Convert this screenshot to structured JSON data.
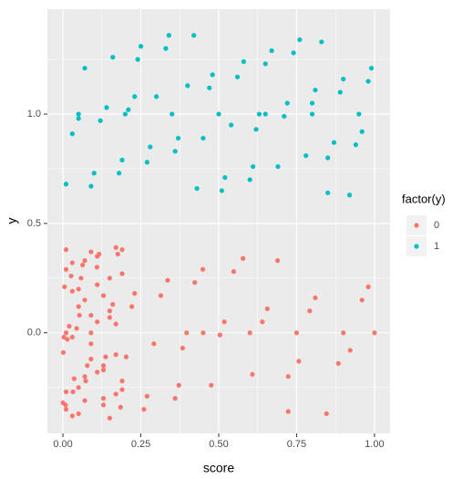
{
  "chart_data": {
    "type": "scatter",
    "x_label": "score",
    "y_label": "y",
    "legend_title": "factor(y)",
    "legend": "right",
    "grid": true,
    "xlim": [
      -0.05,
      1.05
    ],
    "ylim": [
      -0.46,
      1.48
    ],
    "xticks": [
      {
        "value": 0,
        "label": "0.00"
      },
      {
        "value": 0.25,
        "label": "0.25"
      },
      {
        "value": 0.5,
        "label": "0.50"
      },
      {
        "value": 0.75,
        "label": "0.75"
      },
      {
        "value": 1,
        "label": "1.00"
      }
    ],
    "yticks": [
      {
        "value": 0,
        "label": "0.0"
      },
      {
        "value": 0.5,
        "label": "0.5"
      },
      {
        "value": 1,
        "label": "1.0"
      }
    ],
    "minor_xticks": [
      0.125,
      0.375,
      0.625,
      0.875
    ],
    "minor_yticks": [
      -0.25,
      0.25,
      0.75,
      1.25
    ],
    "series": [
      {
        "name": "0",
        "color": "#F8766D",
        "x": [
          0.384,
          0.058,
          0.723,
          0.221,
          0.008,
          0.504,
          0.109,
          0.884,
          0.314,
          0.032,
          0.64,
          0.176,
          0.001,
          0.423,
          0.073,
          0.792,
          0.26,
          0.014,
          0.548,
          0.13,
          0.96,
          0.36,
          0.044,
          0.689,
          0.203,
          0.005,
          0.476,
          0.09,
          0.846,
          0.292,
          0.026,
          0.608,
          0.16,
          0.0,
          0.397,
          0.063,
          0.757,
          0.23,
          0.01,
          0.518,
          0.116,
          0.922,
          0.336,
          0.036,
          0.656,
          0.185,
          0.003,
          0.449,
          0.078,
          0.81,
          0.27,
          0.02,
          0.578,
          0.137,
          0.98,
          0.372,
          0.053,
          0.723,
          0.01,
          0.03,
          0.05,
          0.07,
          0.09,
          0.11,
          0.13,
          0.15,
          0.17,
          0.19,
          0.01,
          0.03,
          0.05,
          0.07,
          0.09,
          0.11,
          0.13,
          0.15,
          0.17,
          0.19,
          0.01,
          0.03,
          0.05,
          0.07,
          0.09,
          0.11,
          0.13,
          0.15,
          0.17,
          0.19,
          0.01,
          0.03,
          0.05,
          0.07,
          0.09,
          0.11,
          0.13,
          0.15,
          0.17,
          0.19,
          0.45,
          0.6,
          0.75,
          0.9,
          1.0
        ],
        "values": [
          -0.07,
          0.25,
          -0.2,
          0.12,
          -0.33,
          -0.01,
          0.3,
          -0.14,
          0.17,
          -0.27,
          0.05,
          0.36,
          -0.09,
          0.23,
          -0.22,
          0.1,
          -0.35,
          -0.03,
          0.28,
          -0.17,
          0.15,
          -0.3,
          0.02,
          0.33,
          -0.11,
          0.21,
          -0.24,
          0.08,
          -0.37,
          -0.05,
          0.26,
          -0.19,
          0.13,
          -0.32,
          0.0,
          0.31,
          -0.13,
          0.18,
          -0.27,
          0.05,
          0.36,
          -0.08,
          0.24,
          -0.21,
          0.11,
          -0.34,
          -0.02,
          0.29,
          -0.15,
          0.16,
          -0.29,
          0.03,
          0.34,
          -0.11,
          0.21,
          -0.24,
          0.08,
          -0.36,
          0.38,
          -0.38,
          0.2,
          -0.2,
          0.0,
          0.35,
          -0.3,
          0.1,
          -0.1,
          0.27,
          -0.35,
          0.32,
          -0.25,
          0.15,
          -0.05,
          0.05,
          -0.15,
          0.25,
          -0.28,
          0.38,
          0.0,
          0.19,
          -0.37,
          0.33,
          -0.12,
          0.22,
          -0.33,
          0.07,
          0.39,
          -0.22,
          0.29,
          -0.02,
          0.12,
          -0.31,
          0.37,
          -0.18,
          0.17,
          -0.39,
          0.04,
          -0.26,
          0.0,
          0.0,
          0.0,
          0.0,
          0.0
        ]
      },
      {
        "name": "1",
        "color": "#00BFC4",
        "x": [
          0.62,
          0.24,
          0.85,
          0.47,
          0.09,
          0.71,
          0.33,
          0.94,
          0.56,
          0.18,
          0.8,
          0.42,
          0.03,
          0.65,
          0.27,
          0.89,
          0.51,
          0.12,
          0.74,
          0.36,
          0.98,
          0.6,
          0.21,
          0.83,
          0.45,
          0.07,
          0.69,
          0.3,
          0.92,
          0.54,
          0.16,
          0.78,
          0.4,
          0.01,
          0.63,
          0.25,
          0.87,
          0.48,
          0.1,
          0.72,
          0.34,
          0.96,
          0.58,
          0.19,
          0.81,
          0.43,
          0.05,
          0.67,
          0.28,
          0.9,
          0.52,
          0.14,
          0.76,
          0.37,
          0.99,
          0.61,
          0.23,
          0.85,
          0.05,
          0.2,
          0.35,
          0.5,
          0.65,
          0.8,
          0.95
        ],
        "values": [
          0.93,
          1.25,
          0.8,
          1.12,
          0.67,
          0.99,
          1.3,
          0.86,
          1.17,
          0.73,
          1.05,
          1.36,
          0.91,
          1.23,
          0.78,
          1.1,
          0.65,
          0.97,
          1.28,
          0.83,
          1.15,
          0.7,
          1.02,
          1.33,
          0.89,
          1.21,
          0.76,
          1.08,
          0.63,
          0.95,
          1.26,
          0.81,
          1.13,
          0.68,
          1.0,
          1.31,
          0.87,
          1.18,
          0.73,
          1.05,
          1.36,
          0.92,
          1.24,
          0.79,
          1.11,
          0.66,
          0.98,
          1.29,
          0.85,
          1.16,
          0.71,
          1.03,
          1.34,
          0.89,
          1.21,
          0.76,
          1.08,
          0.64,
          1.0,
          1.0,
          1.0,
          1.0,
          1.0,
          1.0,
          1.0
        ]
      }
    ]
  }
}
